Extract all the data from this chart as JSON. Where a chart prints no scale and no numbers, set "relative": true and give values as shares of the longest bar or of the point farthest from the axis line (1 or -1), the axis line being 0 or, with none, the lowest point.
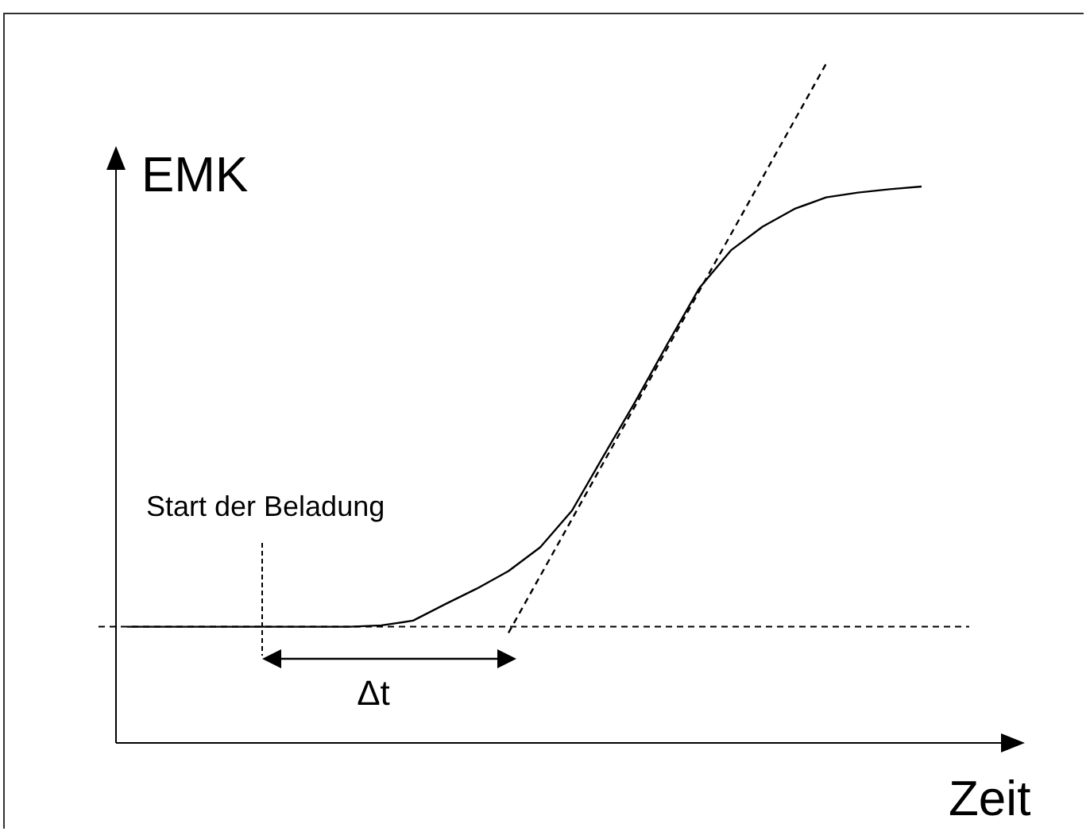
{
  "chart_data": {
    "type": "line",
    "relative": true,
    "xlabel": "Zeit",
    "ylabel": "EMK",
    "marker": "none",
    "categories": [
      null,
      null,
      null,
      null,
      null,
      null,
      null,
      null,
      null,
      null,
      null,
      null,
      null,
      null,
      null,
      null,
      null,
      null,
      null,
      null,
      null,
      null,
      null,
      null,
      null,
      null
    ],
    "series": [
      {
        "color": "#000000",
        "line_style": "solid",
        "values": [
          0.171,
          0.171,
          0.171,
          0.171,
          0.171,
          0.171,
          0.171,
          0.171,
          0.173,
          0.18,
          0.204,
          0.227,
          0.253,
          0.288,
          0.342,
          0.423,
          0.503,
          0.587,
          0.669,
          0.725,
          0.76,
          0.786,
          0.803,
          0.81,
          0.815,
          0.819
        ]
      },
      {
        "color": "#000000",
        "line_style": "dashed",
        "values": [
          null,
          null,
          null,
          null,
          null,
          null,
          null,
          null,
          null,
          null,
          null,
          null,
          0.162,
          null,
          null,
          null,
          null,
          null,
          null,
          null,
          null,
          null,
          1,
          null,
          null,
          null
        ]
      }
    ],
    "ref_lines": [
      {
        "axis": "y",
        "value": 0.171,
        "line_style": "dashed",
        "color": "#000000"
      }
    ],
    "annotations": [
      "Start der Beladung",
      "Δt"
    ]
  }
}
